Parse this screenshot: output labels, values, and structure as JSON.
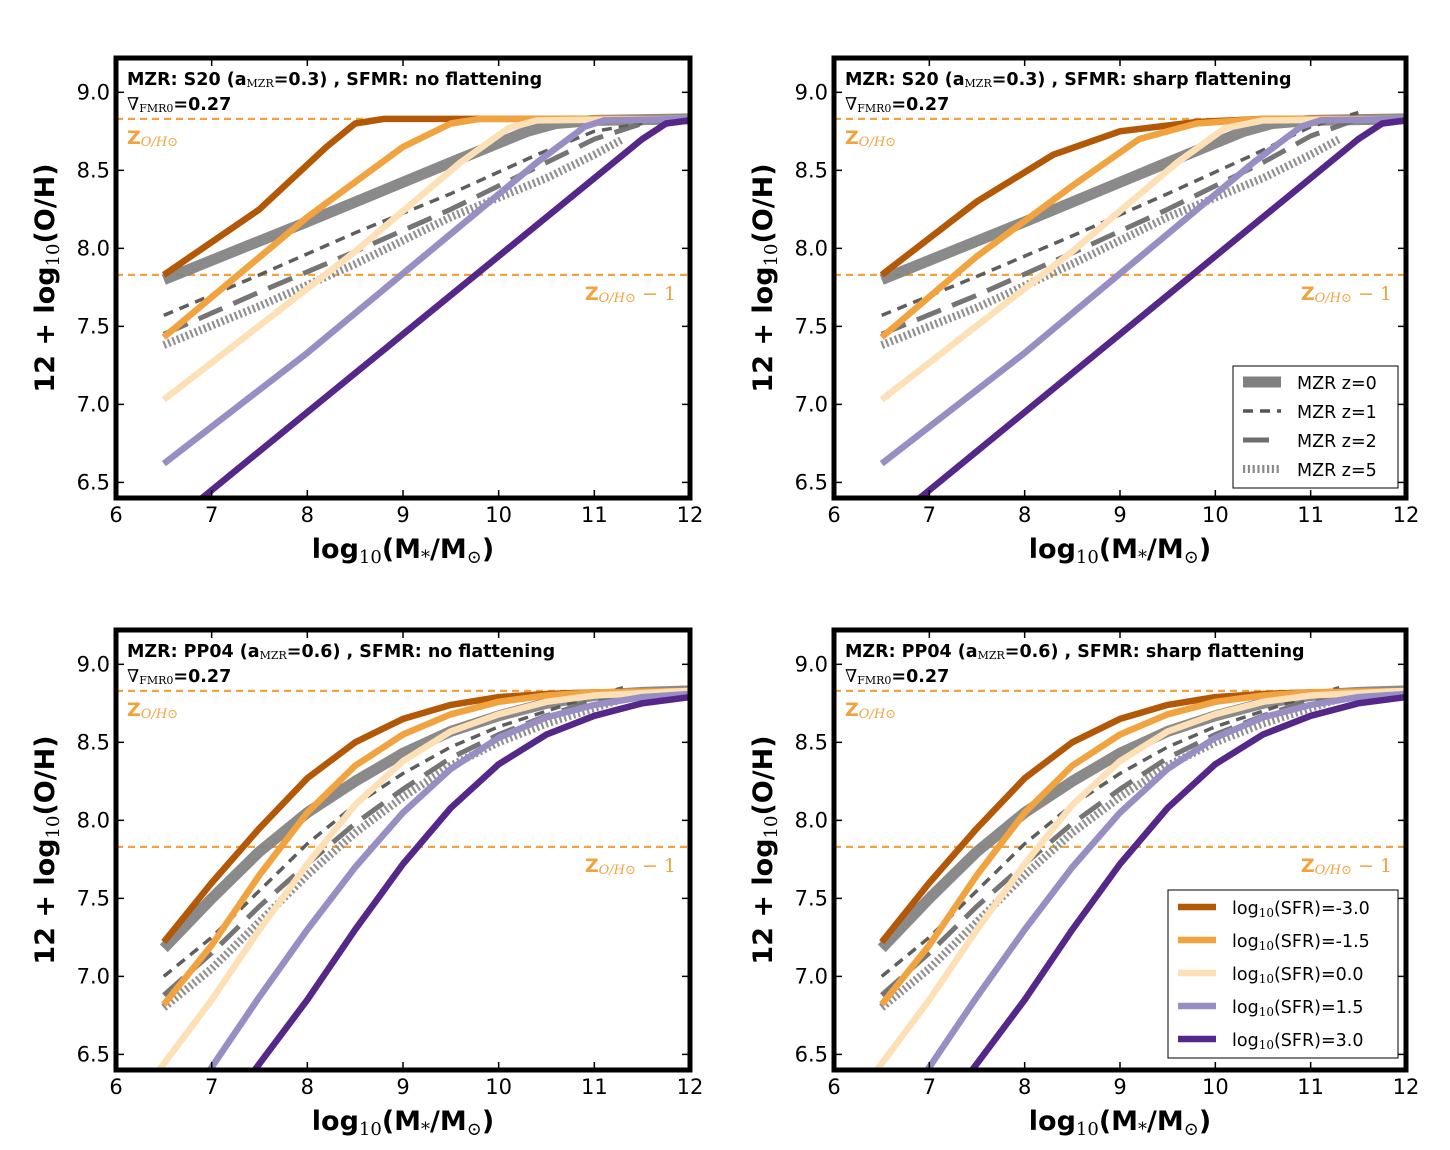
{
  "colors": {
    "sfr": [
      "#b35806",
      "#f1a340",
      "#fee0b6",
      "#998ec3",
      "#542788"
    ],
    "mzr": "#808080",
    "solar": "#f1a340",
    "frame": "#000000"
  },
  "axis": {
    "xlim": [
      6,
      12
    ],
    "ylim": [
      6.4,
      9.22
    ],
    "xticks": [
      6,
      7,
      8,
      9,
      10,
      11,
      12
    ],
    "yticks": [
      6.5,
      7.0,
      7.5,
      8.0,
      8.5,
      9.0
    ],
    "xtick_labels": [
      "6",
      "7",
      "8",
      "9",
      "10",
      "11",
      "12"
    ],
    "ytick_labels": [
      "6.5",
      "7.0",
      "7.5",
      "8.0",
      "8.5",
      "9.0"
    ],
    "xlabel": {
      "pre": "log",
      "sub": "10",
      "mid": "(M",
      "sub2": "*",
      "mid2": "/M",
      "sub3": "⊙",
      "post": ")"
    },
    "ylabel": {
      "pre": "12 + log",
      "sub": "10",
      "post": "(O/H)"
    },
    "solar_value": 8.83,
    "solar_minus1_value": 7.83,
    "solar_label": {
      "main": "Z",
      "sub": "O/H⊙"
    },
    "solar_minus1_label": {
      "main": "Z",
      "sub": "O/H⊙",
      "post": " − 1"
    }
  },
  "legend_mzr": [
    {
      "label": "MZR z=0",
      "style": "solid"
    },
    {
      "label": "MZR z=1",
      "style": "dashed"
    },
    {
      "label": "MZR z=2",
      "style": "longdash"
    },
    {
      "label": "MZR z=5",
      "style": "dotted"
    }
  ],
  "legend_sfr": [
    {
      "label": {
        "pre": "log",
        "sub": "10",
        "post": "(SFR)=-3.0"
      }
    },
    {
      "label": {
        "pre": "log",
        "sub": "10",
        "post": "(SFR)=-1.5"
      }
    },
    {
      "label": {
        "pre": "log",
        "sub": "10",
        "post": "(SFR)=0.0"
      }
    },
    {
      "label": {
        "pre": "log",
        "sub": "10",
        "post": "(SFR)=1.5"
      }
    },
    {
      "label": {
        "pre": "log",
        "sub": "10",
        "post": "(SFR)=3.0"
      }
    }
  ],
  "chart_data": [
    {
      "type": "line",
      "panel": "top-left",
      "title": {
        "t1": "MZR: S20 (a",
        "sub": "MZR",
        "t2": "=0.3) , SFMR: no flattening"
      },
      "subtitle": {
        "t1": "∇",
        "sub": "FMR0",
        "t2": "=0.27"
      },
      "xlabel": "log10(M*/Msun)",
      "ylabel": "12 + log10(O/H)",
      "xlim": [
        6,
        12
      ],
      "ylim": [
        6.4,
        9.22
      ],
      "series": [
        {
          "name": "log10(SFR)=-3.0",
          "x": [
            6.5,
            7.5,
            8.2,
            8.5,
            8.8,
            12
          ],
          "y": [
            7.83,
            8.25,
            8.65,
            8.8,
            8.83,
            8.83
          ]
        },
        {
          "name": "log10(SFR)=-1.5",
          "x": [
            6.5,
            8.0,
            9.0,
            9.5,
            9.8,
            12
          ],
          "y": [
            7.43,
            8.2,
            8.65,
            8.8,
            8.83,
            8.83
          ]
        },
        {
          "name": "log10(SFR)=0.0",
          "x": [
            6.5,
            8.5,
            9.6,
            10.1,
            10.4,
            12
          ],
          "y": [
            7.03,
            7.98,
            8.55,
            8.77,
            8.82,
            8.83
          ]
        },
        {
          "name": "log10(SFR)=1.5",
          "x": [
            6.5,
            8.0,
            10.4,
            10.9,
            11.1,
            12
          ],
          "y": [
            6.62,
            7.33,
            8.55,
            8.78,
            8.82,
            8.83
          ]
        },
        {
          "name": "log10(SFR)=3.0",
          "x": [
            6.9,
            9.0,
            11.5,
            11.75,
            12
          ],
          "y": [
            6.4,
            7.45,
            8.7,
            8.8,
            8.82
          ]
        },
        {
          "name": "MZR z=0",
          "x": [
            6.5,
            8.0,
            9.5,
            10.3,
            10.6,
            11.0,
            12
          ],
          "y": [
            7.8,
            8.17,
            8.55,
            8.75,
            8.8,
            8.82,
            8.83
          ]
        },
        {
          "name": "MZR z=1",
          "x": [
            6.5,
            7.5,
            8.5,
            9.5,
            10.4,
            11.0,
            11.5
          ],
          "y": [
            7.57,
            7.83,
            8.1,
            8.35,
            8.6,
            8.75,
            8.8
          ]
        },
        {
          "name": "MZR z=2",
          "x": [
            6.5,
            7.5,
            8.5,
            9.5,
            10.5,
            11.0,
            11.5
          ],
          "y": [
            7.45,
            7.72,
            7.98,
            8.25,
            8.55,
            8.7,
            8.8
          ]
        },
        {
          "name": "MZR z=5",
          "x": [
            6.5,
            7.5,
            8.5,
            9.5,
            10.5,
            11.0,
            11.3
          ],
          "y": [
            7.38,
            7.63,
            7.9,
            8.2,
            8.45,
            8.6,
            8.7
          ]
        }
      ]
    },
    {
      "type": "line",
      "panel": "top-right",
      "title": {
        "t1": "MZR: S20 (a",
        "sub": "MZR",
        "t2": "=0.3) , SFMR: sharp flattening"
      },
      "subtitle": {
        "t1": "∇",
        "sub": "FMR0",
        "t2": "=0.27"
      },
      "xlabel": "log10(M*/Msun)",
      "ylabel": "12 + log10(O/H)",
      "xlim": [
        6,
        12
      ],
      "ylim": [
        6.4,
        9.22
      ],
      "series": [
        {
          "name": "log10(SFR)=-3.0",
          "x": [
            6.5,
            7.5,
            8.3,
            9.0,
            9.8,
            10.5,
            12
          ],
          "y": [
            7.83,
            8.3,
            8.6,
            8.75,
            8.81,
            8.83,
            8.83
          ]
        },
        {
          "name": "log10(SFR)=-1.5",
          "x": [
            6.5,
            7.5,
            8.5,
            9.2,
            9.8,
            10.5,
            12
          ],
          "y": [
            7.43,
            7.95,
            8.4,
            8.7,
            8.8,
            8.83,
            8.83
          ]
        },
        {
          "name": "log10(SFR)=0.0",
          "x": [
            6.5,
            8.5,
            9.6,
            10.1,
            10.5,
            12
          ],
          "y": [
            7.03,
            7.98,
            8.55,
            8.77,
            8.82,
            8.83
          ]
        },
        {
          "name": "log10(SFR)=1.5",
          "x": [
            6.5,
            8.0,
            10.4,
            10.9,
            11.1,
            12
          ],
          "y": [
            6.62,
            7.33,
            8.55,
            8.78,
            8.82,
            8.83
          ]
        },
        {
          "name": "log10(SFR)=3.0",
          "x": [
            6.9,
            9.0,
            11.5,
            11.75,
            12
          ],
          "y": [
            6.4,
            7.45,
            8.7,
            8.8,
            8.82
          ]
        },
        {
          "name": "MZR z=0",
          "x": [
            6.5,
            8.0,
            9.5,
            10.3,
            10.6,
            11.0,
            12
          ],
          "y": [
            7.8,
            8.17,
            8.55,
            8.75,
            8.8,
            8.82,
            8.83
          ]
        },
        {
          "name": "MZR z=1",
          "x": [
            6.5,
            7.5,
            8.5,
            9.5,
            10.4,
            11.0,
            11.5
          ],
          "y": [
            7.57,
            7.82,
            8.08,
            8.35,
            8.6,
            8.78,
            8.87
          ]
        },
        {
          "name": "MZR z=2",
          "x": [
            6.5,
            7.5,
            8.5,
            9.5,
            10.5,
            11.0,
            11.5
          ],
          "y": [
            7.45,
            7.7,
            7.97,
            8.25,
            8.55,
            8.72,
            8.83
          ]
        },
        {
          "name": "MZR z=5",
          "x": [
            6.5,
            7.5,
            8.5,
            9.5,
            10.5,
            11.0,
            11.3
          ],
          "y": [
            7.38,
            7.62,
            7.9,
            8.2,
            8.45,
            8.6,
            8.7
          ]
        }
      ]
    },
    {
      "type": "line",
      "panel": "bottom-left",
      "title": {
        "t1": "MZR: PP04 (a",
        "sub": "MZR",
        "t2": "=0.6) , SFMR: no flattening"
      },
      "subtitle": {
        "t1": "∇",
        "sub": "FMR0",
        "t2": "=0.27"
      },
      "xlabel": "log10(M*/Msun)",
      "ylabel": "12 + log10(O/H)",
      "xlim": [
        6,
        12
      ],
      "ylim": [
        6.4,
        9.22
      ],
      "series": [
        {
          "name": "log10(SFR)=-3.0",
          "x": [
            6.5,
            7.0,
            7.5,
            8.0,
            8.5,
            9.0,
            9.5,
            10.0,
            10.5,
            11.0,
            12
          ],
          "y": [
            7.22,
            7.6,
            7.95,
            8.27,
            8.5,
            8.65,
            8.74,
            8.79,
            8.81,
            8.82,
            8.83
          ]
        },
        {
          "name": "log10(SFR)=-1.5",
          "x": [
            6.5,
            7.0,
            7.5,
            8.0,
            8.5,
            9.0,
            9.5,
            10.0,
            10.5,
            11.0,
            12
          ],
          "y": [
            6.82,
            7.2,
            7.65,
            8.05,
            8.35,
            8.55,
            8.68,
            8.76,
            8.8,
            8.82,
            8.83
          ]
        },
        {
          "name": "log10(SFR)=0.0",
          "x": [
            6.45,
            7.0,
            7.5,
            8.0,
            8.5,
            9.0,
            9.5,
            10.0,
            10.5,
            11.0,
            12
          ],
          "y": [
            6.4,
            6.85,
            7.3,
            7.72,
            8.1,
            8.38,
            8.57,
            8.68,
            8.76,
            8.8,
            8.83
          ]
        },
        {
          "name": "log10(SFR)=1.5",
          "x": [
            6.98,
            7.5,
            8.0,
            8.5,
            9.0,
            9.5,
            10.0,
            10.5,
            11.0,
            11.5,
            12
          ],
          "y": [
            6.4,
            6.87,
            7.3,
            7.7,
            8.05,
            8.33,
            8.53,
            8.66,
            8.74,
            8.79,
            8.81
          ]
        },
        {
          "name": "log10(SFR)=3.0",
          "x": [
            7.45,
            8.0,
            8.5,
            9.0,
            9.5,
            10.0,
            10.5,
            11.0,
            11.5,
            12
          ],
          "y": [
            6.4,
            6.85,
            7.3,
            7.72,
            8.08,
            8.36,
            8.55,
            8.67,
            8.75,
            8.79
          ]
        },
        {
          "name": "MZR z=0",
          "x": [
            6.5,
            7.0,
            7.5,
            8.0,
            8.5,
            9.0,
            9.5,
            10.0,
            10.5,
            11.0,
            11.5,
            12
          ],
          "y": [
            7.18,
            7.5,
            7.8,
            8.05,
            8.25,
            8.43,
            8.57,
            8.67,
            8.75,
            8.8,
            8.82,
            8.83
          ]
        },
        {
          "name": "MZR z=1",
          "x": [
            6.5,
            7.0,
            7.5,
            8.0,
            8.5,
            9.0,
            9.5,
            10.0,
            10.5,
            11.0,
            11.3
          ],
          "y": [
            7.0,
            7.25,
            7.55,
            7.85,
            8.1,
            8.3,
            8.47,
            8.6,
            8.7,
            8.8,
            8.85
          ]
        },
        {
          "name": "MZR z=2",
          "x": [
            6.5,
            7.0,
            7.5,
            8.0,
            8.5,
            9.0,
            9.5,
            10.0,
            10.5,
            11.0,
            11.3
          ],
          "y": [
            6.88,
            7.15,
            7.45,
            7.72,
            7.98,
            8.2,
            8.4,
            8.55,
            8.67,
            8.77,
            8.82
          ]
        },
        {
          "name": "MZR z=5",
          "x": [
            6.5,
            7.0,
            7.5,
            8.0,
            8.5,
            9.0,
            9.5,
            10.0,
            10.5,
            11.0,
            11.3
          ],
          "y": [
            6.8,
            7.05,
            7.35,
            7.65,
            7.92,
            8.15,
            8.35,
            8.5,
            8.62,
            8.72,
            8.78
          ]
        }
      ]
    },
    {
      "type": "line",
      "panel": "bottom-right",
      "title": {
        "t1": "MZR: PP04 (a",
        "sub": "MZR",
        "t2": "=0.6) , SFMR: sharp flattening"
      },
      "subtitle": {
        "t1": "∇",
        "sub": "FMR0",
        "t2": "=0.27"
      },
      "xlabel": "log10(M*/Msun)",
      "ylabel": "12 + log10(O/H)",
      "xlim": [
        6,
        12
      ],
      "ylim": [
        6.4,
        9.22
      ],
      "series": [
        {
          "name": "log10(SFR)=-3.0",
          "x": [
            6.5,
            7.0,
            7.5,
            8.0,
            8.5,
            9.0,
            9.5,
            10.0,
            10.5,
            11.0,
            12
          ],
          "y": [
            7.22,
            7.6,
            7.95,
            8.27,
            8.5,
            8.65,
            8.74,
            8.79,
            8.81,
            8.82,
            8.83
          ]
        },
        {
          "name": "log10(SFR)=-1.5",
          "x": [
            6.5,
            7.0,
            7.5,
            8.0,
            8.5,
            9.0,
            9.5,
            10.0,
            10.5,
            11.0,
            12
          ],
          "y": [
            6.82,
            7.2,
            7.65,
            8.05,
            8.35,
            8.55,
            8.68,
            8.76,
            8.8,
            8.82,
            8.83
          ]
        },
        {
          "name": "log10(SFR)=0.0",
          "x": [
            6.45,
            7.0,
            7.5,
            8.0,
            8.5,
            9.0,
            9.5,
            10.0,
            10.5,
            11.0,
            12
          ],
          "y": [
            6.4,
            6.85,
            7.3,
            7.72,
            8.1,
            8.38,
            8.57,
            8.68,
            8.76,
            8.8,
            8.83
          ]
        },
        {
          "name": "log10(SFR)=1.5",
          "x": [
            6.98,
            7.5,
            8.0,
            8.5,
            9.0,
            9.5,
            10.0,
            10.5,
            11.0,
            11.5,
            12
          ],
          "y": [
            6.4,
            6.87,
            7.3,
            7.7,
            8.05,
            8.33,
            8.53,
            8.66,
            8.74,
            8.79,
            8.81
          ]
        },
        {
          "name": "log10(SFR)=3.0",
          "x": [
            7.45,
            8.0,
            8.5,
            9.0,
            9.5,
            10.0,
            10.5,
            11.0,
            11.5,
            12
          ],
          "y": [
            6.4,
            6.85,
            7.3,
            7.72,
            8.08,
            8.36,
            8.55,
            8.67,
            8.75,
            8.79
          ]
        },
        {
          "name": "MZR z=0",
          "x": [
            6.5,
            7.0,
            7.5,
            8.0,
            8.5,
            9.0,
            9.5,
            10.0,
            10.5,
            11.0,
            11.5,
            12
          ],
          "y": [
            7.18,
            7.5,
            7.8,
            8.05,
            8.25,
            8.43,
            8.57,
            8.67,
            8.75,
            8.8,
            8.82,
            8.83
          ]
        },
        {
          "name": "MZR z=1",
          "x": [
            6.5,
            7.0,
            7.5,
            8.0,
            8.5,
            9.0,
            9.5,
            10.0,
            10.5,
            11.0,
            11.3
          ],
          "y": [
            7.0,
            7.25,
            7.55,
            7.85,
            8.1,
            8.3,
            8.47,
            8.6,
            8.7,
            8.8,
            8.85
          ]
        },
        {
          "name": "MZR z=2",
          "x": [
            6.5,
            7.0,
            7.5,
            8.0,
            8.5,
            9.0,
            9.5,
            10.0,
            10.5,
            11.0,
            11.3
          ],
          "y": [
            6.88,
            7.15,
            7.45,
            7.72,
            7.98,
            8.2,
            8.4,
            8.55,
            8.67,
            8.77,
            8.82
          ]
        },
        {
          "name": "MZR z=5",
          "x": [
            6.5,
            7.0,
            7.5,
            8.0,
            8.5,
            9.0,
            9.5,
            10.0,
            10.5,
            11.0,
            11.3
          ],
          "y": [
            6.8,
            7.05,
            7.35,
            7.65,
            7.92,
            8.15,
            8.35,
            8.5,
            8.62,
            8.72,
            8.78
          ]
        }
      ]
    }
  ]
}
